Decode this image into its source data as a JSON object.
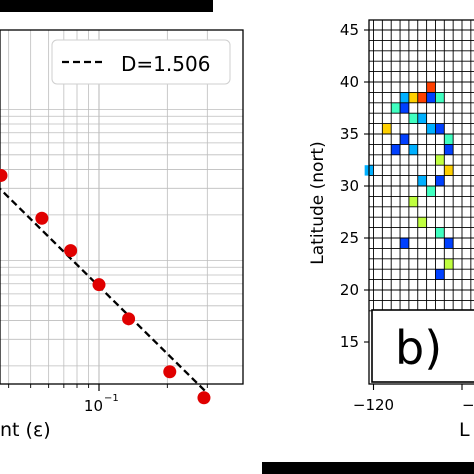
{
  "chart_data": [
    {
      "panel": "a",
      "type": "scatter",
      "xscale": "log",
      "yscale": "log",
      "xlabel_visible": "nt  (ε)",
      "x_tick_labels": [
        {
          "base": "10",
          "exp": "−1"
        }
      ],
      "legend": {
        "label": "D=1.506",
        "style": "dashed",
        "placement": "top-right"
      },
      "grid": true,
      "series": [
        {
          "marker_color": "#e00000",
          "points": [
            {
              "x": 0.037,
              "y": 0.0365
            },
            {
              "x": 0.056,
              "y": 0.019
            },
            {
              "x": 0.075,
              "y": 0.0116
            },
            {
              "x": 0.1,
              "y": 0.0069
            },
            {
              "x": 0.135,
              "y": 0.0041
            },
            {
              "x": 0.205,
              "y": 0.00183
            },
            {
              "x": 0.29,
              "y": 0.00123
            }
          ]
        }
      ],
      "fit_line": {
        "from": {
          "x": 0.03,
          "y": 0.04
        },
        "to": {
          "x": 0.3,
          "y": 0.00132
        },
        "color": "#000000"
      }
    },
    {
      "panel": "b",
      "type": "heatmap",
      "panel_label": "b)",
      "ylabel": "Latitude (nort)",
      "xlabel_visible": "L",
      "y_ticks": [
        "45",
        "40",
        "35",
        "30",
        "25",
        "20",
        "15"
      ],
      "x_ticks": [
        "−120",
        "−1"
      ],
      "colormap": [
        "#000080",
        "#0040ff",
        "#00b0ff",
        "#40ffc0",
        "#c0ff40",
        "#ffd000",
        "#ff4000"
      ],
      "cells": [
        {
          "lon": -119,
          "lat": 35,
          "v": 5
        },
        {
          "lon": -118,
          "lat": 37,
          "v": 3
        },
        {
          "lon": -117,
          "lat": 38,
          "v": 2
        },
        {
          "lon": -116,
          "lat": 38,
          "v": 5
        },
        {
          "lon": -115,
          "lat": 38,
          "v": 6
        },
        {
          "lon": -114,
          "lat": 39,
          "v": 6
        },
        {
          "lon": -114,
          "lat": 38,
          "v": 1
        },
        {
          "lon": -113,
          "lat": 38,
          "v": 3
        },
        {
          "lon": -117,
          "lat": 37,
          "v": 1
        },
        {
          "lon": -116,
          "lat": 36,
          "v": 3
        },
        {
          "lon": -115,
          "lat": 36,
          "v": 2
        },
        {
          "lon": -114,
          "lat": 35,
          "v": 2
        },
        {
          "lon": -113,
          "lat": 35,
          "v": 1
        },
        {
          "lon": -112,
          "lat": 34,
          "v": 3
        },
        {
          "lon": -112,
          "lat": 33,
          "v": 1
        },
        {
          "lon": -113,
          "lat": 32,
          "v": 4
        },
        {
          "lon": -112,
          "lat": 31,
          "v": 5
        },
        {
          "lon": -113,
          "lat": 30,
          "v": 1
        },
        {
          "lon": -114,
          "lat": 29,
          "v": 3
        },
        {
          "lon": -115,
          "lat": 30,
          "v": 2
        },
        {
          "lon": -116,
          "lat": 33,
          "v": 2
        },
        {
          "lon": -117,
          "lat": 34,
          "v": 1
        },
        {
          "lon": -118,
          "lat": 33,
          "v": 1
        },
        {
          "lon": -121,
          "lat": 31,
          "v": 2
        },
        {
          "lon": -116,
          "lat": 28,
          "v": 4
        },
        {
          "lon": -115,
          "lat": 26,
          "v": 4
        },
        {
          "lon": -113,
          "lat": 25,
          "v": 3
        },
        {
          "lon": -112,
          "lat": 24,
          "v": 1
        },
        {
          "lon": -112,
          "lat": 22,
          "v": 4
        },
        {
          "lon": -117,
          "lat": 24,
          "v": 1
        },
        {
          "lon": -113,
          "lat": 21,
          "v": 1
        }
      ]
    }
  ]
}
